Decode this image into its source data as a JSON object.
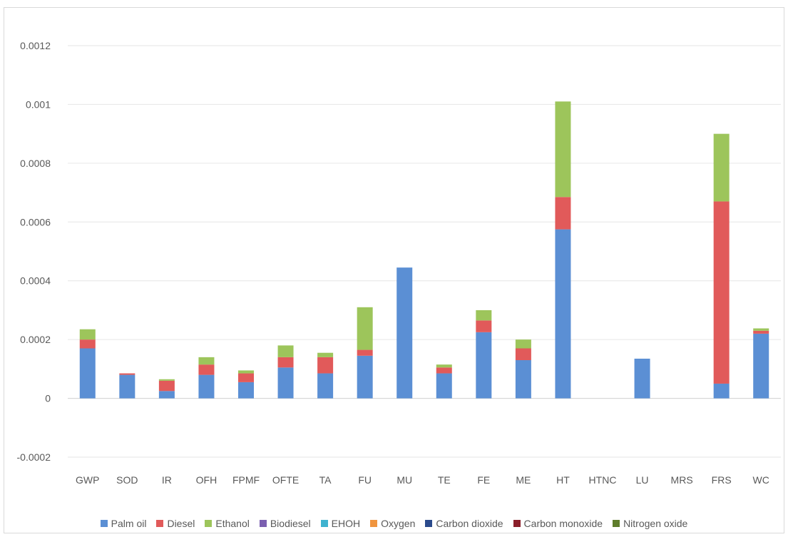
{
  "chart_data": {
    "type": "bar",
    "stacked": true,
    "title": "",
    "xlabel": "",
    "ylabel": "",
    "ylim": [
      -0.0002,
      0.0012
    ],
    "yticks": [
      "-0.0002",
      "0",
      "0.0002",
      "0.0004",
      "0.0006",
      "0.0008",
      "0.001",
      "0.0012"
    ],
    "grid": true,
    "legend_position": "bottom",
    "categories": [
      "GWP",
      "SOD",
      "IR",
      "OFH",
      "FPMF",
      "OFTE",
      "TA",
      "FU",
      "MU",
      "TE",
      "FE",
      "ME",
      "HT",
      "HTNC",
      "LU",
      "MRS",
      "FRS",
      "WC"
    ],
    "series": [
      {
        "name": "Palm oil",
        "color": "#5b8fd4",
        "values": [
          0.00017,
          8e-05,
          2.5e-05,
          8e-05,
          5.5e-05,
          0.000105,
          8.5e-05,
          0.000145,
          0.000445,
          8.5e-05,
          0.000225,
          0.00013,
          0.000575,
          0,
          0.000135,
          0,
          5e-05,
          0.00022
        ]
      },
      {
        "name": "Diesel",
        "color": "#e15a5a",
        "values": [
          3e-05,
          5e-06,
          3.5e-05,
          3.5e-05,
          3e-05,
          3.5e-05,
          5.5e-05,
          2e-05,
          0,
          2e-05,
          4e-05,
          4e-05,
          0.00011,
          0,
          0,
          0,
          0.00062,
          1e-05
        ]
      },
      {
        "name": "Ethanol",
        "color": "#9dc55b",
        "values": [
          3.5e-05,
          0,
          5e-06,
          2.5e-05,
          1e-05,
          4e-05,
          1.5e-05,
          0.000145,
          0,
          1e-05,
          3.5e-05,
          3e-05,
          0.000325,
          0,
          0,
          0,
          0.00023,
          8e-06
        ]
      },
      {
        "name": "Biodiesel",
        "color": "#7b5fb0",
        "values": [
          0,
          0,
          0,
          0,
          0,
          0,
          0,
          0,
          0,
          0,
          0,
          0,
          0,
          0,
          0,
          0,
          0,
          0
        ]
      },
      {
        "name": "EHOH",
        "color": "#3fb2cf",
        "values": [
          0,
          0,
          0,
          0,
          0,
          0,
          0,
          0,
          0,
          0,
          0,
          0,
          0,
          0,
          0,
          0,
          0,
          0
        ]
      },
      {
        "name": "Oxygen",
        "color": "#f0953f",
        "values": [
          0,
          0,
          0,
          0,
          0,
          0,
          0,
          0,
          0,
          0,
          0,
          0,
          0,
          0,
          0,
          0,
          0,
          0
        ]
      },
      {
        "name": "Carbon dioxide",
        "color": "#2b4a8c",
        "values": [
          0,
          0,
          0,
          0,
          0,
          0,
          0,
          0,
          0,
          0,
          0,
          0,
          0,
          0,
          0,
          0,
          0,
          0
        ]
      },
      {
        "name": "Carbon monoxide",
        "color": "#8b1f2a",
        "values": [
          0,
          0,
          0,
          0,
          0,
          0,
          0,
          0,
          0,
          0,
          0,
          0,
          0,
          0,
          0,
          0,
          0,
          0
        ]
      },
      {
        "name": "Nitrogen oxide",
        "color": "#5e7d2b",
        "values": [
          0,
          0,
          0,
          0,
          0,
          0,
          0,
          0,
          0,
          0,
          0,
          0,
          0,
          0,
          0,
          0,
          0,
          0
        ]
      }
    ]
  }
}
